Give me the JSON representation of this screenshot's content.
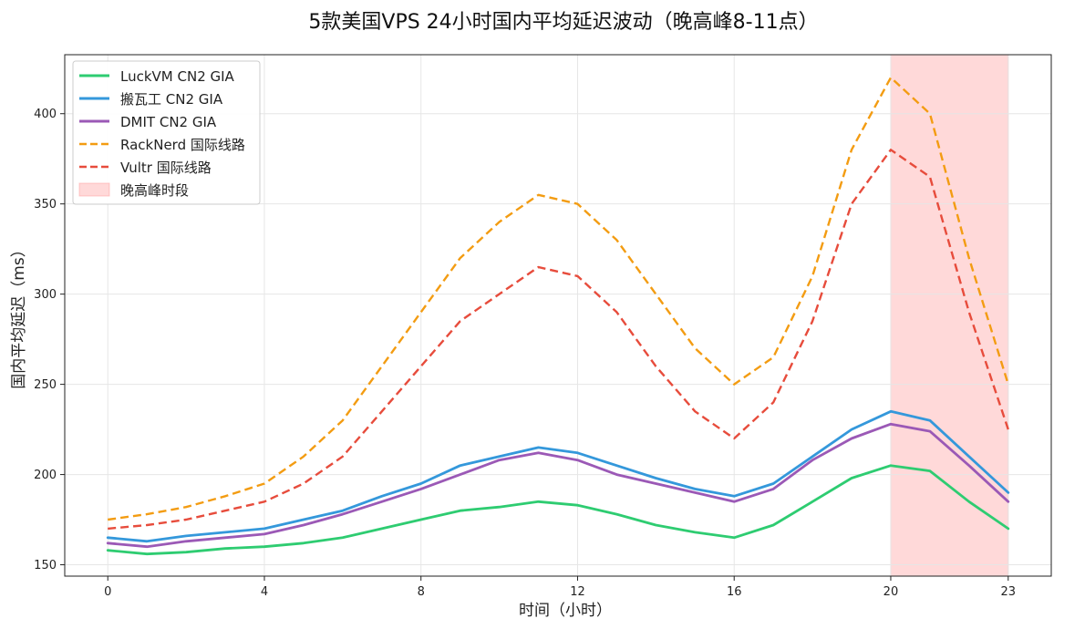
{
  "chart_data": {
    "type": "line",
    "title": "5款美国VPS 24小时国内平均延迟波动（晚高峰8-11点）",
    "xlabel": "时间（小时）",
    "ylabel": "国内平均延迟（ms）",
    "x": [
      0,
      1,
      2,
      3,
      4,
      5,
      6,
      7,
      8,
      9,
      10,
      11,
      12,
      13,
      14,
      15,
      16,
      17,
      18,
      19,
      20,
      21,
      22,
      23
    ],
    "xticks": [
      0,
      4,
      8,
      12,
      16,
      20,
      23
    ],
    "yticks": [
      150,
      200,
      250,
      300,
      350,
      400
    ],
    "xlim": [
      -1.1,
      24.1
    ],
    "ylim": [
      143.7,
      432.7
    ],
    "grid": true,
    "legend_position": "top-left",
    "series": [
      {
        "name": "LuckVM CN2 GIA",
        "color": "#2ecc71",
        "style": "solid",
        "values": [
          158,
          156,
          157,
          159,
          160,
          162,
          165,
          170,
          175,
          180,
          182,
          185,
          183,
          178,
          172,
          168,
          165,
          172,
          185,
          198,
          205,
          202,
          185,
          170
        ]
      },
      {
        "name": "搬瓦工 CN2 GIA",
        "color": "#3498db",
        "style": "solid",
        "values": [
          165,
          163,
          166,
          168,
          170,
          175,
          180,
          188,
          195,
          205,
          210,
          215,
          212,
          205,
          198,
          192,
          188,
          195,
          210,
          225,
          235,
          230,
          210,
          190
        ]
      },
      {
        "name": "DMIT CN2 GIA",
        "color": "#9b59b6",
        "style": "solid",
        "values": [
          162,
          160,
          163,
          165,
          167,
          172,
          178,
          185,
          192,
          200,
          208,
          212,
          208,
          200,
          195,
          190,
          185,
          192,
          208,
          220,
          228,
          224,
          205,
          185
        ]
      },
      {
        "name": "RackNerd 国际线路",
        "color": "#f39c12",
        "style": "dashed",
        "values": [
          175,
          178,
          182,
          188,
          195,
          210,
          230,
          260,
          290,
          320,
          340,
          355,
          350,
          330,
          300,
          270,
          250,
          265,
          310,
          380,
          420,
          400,
          320,
          250
        ]
      },
      {
        "name": "Vultr 国际线路",
        "color": "#e74c3c",
        "style": "dashed",
        "values": [
          170,
          172,
          175,
          180,
          185,
          195,
          210,
          235,
          260,
          285,
          300,
          315,
          310,
          290,
          260,
          235,
          220,
          240,
          285,
          350,
          380,
          365,
          290,
          225
        ]
      }
    ],
    "highlight": {
      "name": "晚高峰时段",
      "x_start": 20,
      "x_end": 23,
      "color": "#ffb3b3"
    }
  }
}
